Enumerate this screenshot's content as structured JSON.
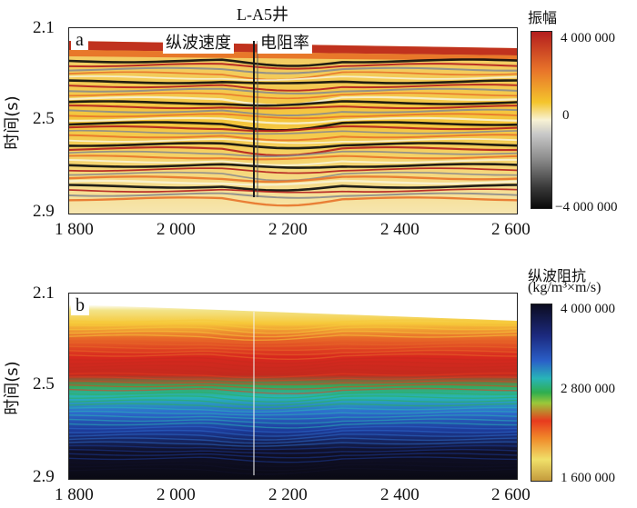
{
  "chart_data": [
    {
      "type": "heatmap",
      "panel": "a",
      "title": "L-A5井",
      "ylabel": "时间(s)",
      "xlim": [
        1800,
        2600
      ],
      "ylim": [
        2.1,
        2.9
      ],
      "x_ticks": [
        "1 800",
        "2 000",
        "2 200",
        "2 400",
        "2 600"
      ],
      "y_ticks": [
        "2.1",
        "2.5",
        "2.9"
      ],
      "annotations": [
        "纵波速度",
        "电阻率"
      ],
      "colorbar": {
        "title": "振幅",
        "ticks": [
          "4 000 000",
          "0",
          "−4 000 000"
        ],
        "range": [
          -4000000,
          4000000
        ]
      },
      "colors": [
        "#b41e1e",
        "#e8742a",
        "#f4c52c",
        "#f8f2d4",
        "#8c8c8c",
        "#0a0a0a"
      ]
    },
    {
      "type": "heatmap",
      "panel": "b",
      "ylabel": "时间(s)",
      "xlim": [
        1800,
        2600
      ],
      "ylim": [
        2.1,
        2.9
      ],
      "x_ticks": [
        "1 800",
        "2 000",
        "2 200",
        "2 400",
        "2 600"
      ],
      "y_ticks": [
        "2.1",
        "2.5",
        "2.9"
      ],
      "colorbar": {
        "title_line1": "纵波阻抗",
        "title_line2": "(kg/m³×m/s)",
        "ticks": [
          "4 000 000",
          "2 800 000",
          "1 600 000"
        ],
        "range": [
          1600000,
          4000000
        ]
      },
      "colors": [
        "#c49a3c",
        "#f0e06a",
        "#e83a1e",
        "#2fae4e",
        "#2a5fc8",
        "#0c0c20"
      ]
    }
  ]
}
